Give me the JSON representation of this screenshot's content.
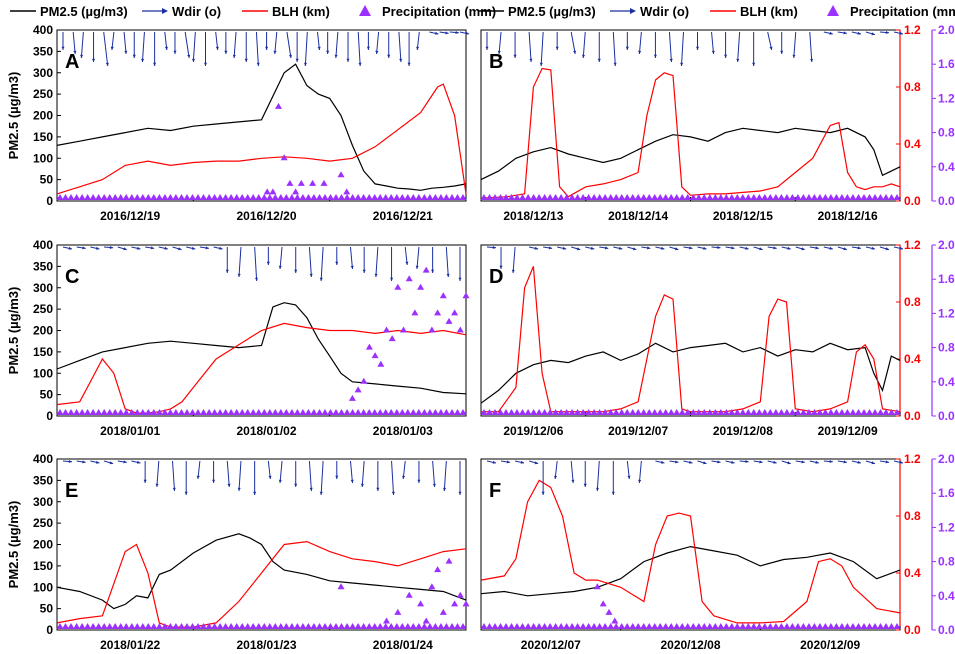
{
  "legend": [
    {
      "label": "PM2.5 (µg/m3)",
      "color": "#000000",
      "kind": "line"
    },
    {
      "label": "Wdir (o)",
      "color": "#1a2fa0",
      "kind": "arrow"
    },
    {
      "label": "BLH (km)",
      "color": "#ff0000",
      "kind": "line"
    },
    {
      "label": "Precipitation (mm)",
      "color": "#9b30ff",
      "kind": "triangle"
    }
  ],
  "colors": {
    "pm25": "#000000",
    "wind": "#1a2fa0",
    "blh": "#ff0000",
    "precip": "#9b30ff"
  },
  "y_label": "PM2.5 (µg/m3)",
  "chart_data": [
    {
      "type": "line",
      "panel": "A",
      "x_ticks": [
        "2016/12/19",
        "2016/12/20",
        "2016/12/21"
      ],
      "pm25_ticks": [
        "0",
        "50",
        "100",
        "150",
        "200",
        "250",
        "300",
        "350",
        "400"
      ],
      "pm25_ylim": [
        0,
        400
      ],
      "x_range": [
        0,
        72
      ],
      "series": [
        {
          "name": "PM2.5",
          "axis": "left",
          "x": [
            0,
            4,
            8,
            12,
            16,
            20,
            24,
            28,
            32,
            36,
            40,
            42,
            44,
            46,
            48,
            50,
            52,
            54,
            56,
            58,
            60,
            62,
            64,
            66,
            68,
            70,
            72
          ],
          "values": [
            130,
            140,
            150,
            160,
            170,
            165,
            175,
            180,
            185,
            190,
            300,
            320,
            270,
            250,
            240,
            200,
            130,
            70,
            40,
            35,
            30,
            28,
            25,
            30,
            32,
            35,
            40
          ]
        },
        {
          "name": "BLH",
          "axis": "right",
          "x": [
            0,
            4,
            8,
            12,
            16,
            20,
            24,
            28,
            32,
            36,
            40,
            44,
            48,
            52,
            56,
            60,
            64,
            67,
            68,
            70,
            72
          ],
          "values": [
            0.05,
            0.1,
            0.15,
            0.25,
            0.28,
            0.25,
            0.27,
            0.28,
            0.28,
            0.3,
            0.31,
            0.3,
            0.28,
            0.3,
            0.38,
            0.5,
            0.62,
            0.8,
            0.82,
            0.6,
            0.05
          ]
        }
      ],
      "wind_dir": [
        190,
        195,
        185,
        190,
        200,
        185,
        195,
        190,
        185,
        190,
        195,
        190,
        200,
        185,
        190,
        195,
        190,
        185,
        190,
        195,
        190,
        185,
        200,
        190,
        185,
        195,
        190,
        185,
        190,
        195,
        190,
        185,
        190,
        195,
        190,
        185,
        90,
        85,
        80,
        90
      ],
      "precip": {
        "x": [
          37,
          38,
          39,
          40,
          41,
          42,
          43,
          45,
          47,
          50,
          51
        ],
        "values": [
          0.1,
          0.1,
          1.1,
          0.5,
          0.2,
          0.1,
          0.2,
          0.2,
          0.2,
          0.3,
          0.1
        ]
      }
    },
    {
      "type": "line",
      "panel": "B",
      "x_ticks": [
        "2018/12/13",
        "2018/12/14",
        "2018/12/15",
        "2018/12/16"
      ],
      "blh_ticks": [
        "0.0",
        "0.4",
        "0.8",
        "1.2"
      ],
      "blh_ylim": [
        0,
        1.2
      ],
      "precip_ticks": [
        "0.0",
        "0.4",
        "0.8",
        "1.2",
        "1.6",
        "2.0"
      ],
      "precip_ylim": [
        0,
        2.0
      ],
      "x_range": [
        0,
        96
      ],
      "series": [
        {
          "name": "PM2.5",
          "axis": "left",
          "x": [
            0,
            4,
            8,
            12,
            16,
            20,
            24,
            28,
            32,
            36,
            40,
            44,
            48,
            52,
            56,
            60,
            64,
            68,
            72,
            76,
            80,
            84,
            88,
            90,
            92,
            94,
            96
          ],
          "values": [
            50,
            70,
            100,
            115,
            125,
            110,
            100,
            90,
            100,
            120,
            140,
            155,
            150,
            140,
            160,
            170,
            165,
            160,
            170,
            165,
            160,
            170,
            150,
            120,
            60,
            70,
            80
          ]
        },
        {
          "name": "BLH",
          "axis": "right",
          "x": [
            0,
            6,
            10,
            12,
            14,
            16,
            18,
            20,
            24,
            28,
            32,
            36,
            38,
            40,
            42,
            44,
            46,
            48,
            52,
            56,
            60,
            64,
            68,
            72,
            76,
            80,
            82,
            84,
            86,
            88,
            90,
            92,
            94,
            96
          ],
          "values": [
            0.02,
            0.03,
            0.05,
            0.8,
            0.93,
            0.92,
            0.1,
            0.03,
            0.1,
            0.12,
            0.15,
            0.2,
            0.6,
            0.85,
            0.9,
            0.88,
            0.1,
            0.04,
            0.05,
            0.05,
            0.06,
            0.07,
            0.1,
            0.2,
            0.3,
            0.53,
            0.55,
            0.2,
            0.1,
            0.08,
            0.1,
            0.1,
            0.12,
            0.1
          ]
        }
      ],
      "wind_dir": [
        190,
        185,
        190,
        195,
        185,
        190,
        200,
        185,
        190,
        195,
        190,
        185,
        190,
        195,
        185,
        190,
        195,
        190,
        185,
        190,
        200,
        190,
        185,
        195,
        90,
        85,
        90,
        95,
        80,
        90
      ],
      "precip": {
        "x": [],
        "values": []
      }
    },
    {
      "type": "line",
      "panel": "C",
      "x_ticks": [
        "2018/01/01",
        "2018/01/02",
        "2018/01/03"
      ],
      "pm25_ticks": [
        "0",
        "50",
        "100",
        "150",
        "200",
        "250",
        "300",
        "350",
        "400"
      ],
      "pm25_ylim": [
        0,
        400
      ],
      "x_range": [
        0,
        72
      ],
      "series": [
        {
          "name": "PM2.5",
          "axis": "left",
          "x": [
            0,
            4,
            8,
            12,
            16,
            20,
            24,
            28,
            32,
            36,
            38,
            40,
            42,
            44,
            46,
            48,
            50,
            52,
            56,
            60,
            64,
            68,
            72
          ],
          "values": [
            110,
            130,
            150,
            160,
            170,
            175,
            170,
            165,
            160,
            165,
            255,
            265,
            260,
            230,
            180,
            140,
            100,
            80,
            75,
            70,
            65,
            55,
            52
          ]
        },
        {
          "name": "BLH",
          "axis": "right",
          "x": [
            0,
            4,
            6,
            8,
            10,
            12,
            14,
            16,
            18,
            20,
            22,
            24,
            28,
            32,
            36,
            40,
            44,
            48,
            52,
            56,
            60,
            64,
            68,
            72
          ],
          "values": [
            0.08,
            0.1,
            0.25,
            0.4,
            0.3,
            0.05,
            0.02,
            0.02,
            0.03,
            0.05,
            0.1,
            0.2,
            0.4,
            0.5,
            0.6,
            0.65,
            0.62,
            0.6,
            0.6,
            0.58,
            0.6,
            0.58,
            0.6,
            0.57
          ]
        }
      ],
      "wind_dir": [
        90,
        85,
        90,
        80,
        95,
        90,
        85,
        90,
        95,
        90,
        85,
        90,
        190,
        185,
        195,
        190,
        185,
        190,
        195,
        185,
        190,
        195,
        190,
        185,
        190,
        195,
        185,
        190,
        195,
        190
      ],
      "precip": {
        "x": [
          52,
          53,
          54,
          55,
          56,
          57,
          58,
          59,
          60,
          61,
          62,
          63,
          64,
          65,
          66,
          67,
          68,
          69,
          70,
          71,
          72
        ],
        "values": [
          0.2,
          0.3,
          0.4,
          0.8,
          0.7,
          0.6,
          1.0,
          0.9,
          1.5,
          1.0,
          1.6,
          1.2,
          1.5,
          1.7,
          1.0,
          1.2,
          1.4,
          1.1,
          1.2,
          1.0,
          1.4
        ]
      }
    },
    {
      "type": "line",
      "panel": "D",
      "x_ticks": [
        "2019/12/06",
        "2019/12/07",
        "2019/12/08",
        "2019/12/09"
      ],
      "blh_ticks": [
        "0.0",
        "0.4",
        "0.8",
        "1.2"
      ],
      "blh_ylim": [
        0,
        1.2
      ],
      "precip_ticks": [
        "0.0",
        "0.4",
        "0.8",
        "1.2",
        "1.6",
        "2.0"
      ],
      "precip_ylim": [
        0,
        2.0
      ],
      "x_range": [
        0,
        96
      ],
      "series": [
        {
          "name": "PM2.5",
          "axis": "left",
          "x": [
            0,
            4,
            8,
            12,
            16,
            20,
            24,
            28,
            32,
            36,
            40,
            44,
            48,
            52,
            56,
            60,
            64,
            68,
            72,
            76,
            80,
            84,
            88,
            90,
            92,
            94,
            96
          ],
          "values": [
            30,
            60,
            100,
            120,
            130,
            125,
            140,
            150,
            130,
            145,
            170,
            150,
            160,
            165,
            170,
            150,
            160,
            140,
            155,
            150,
            170,
            155,
            160,
            100,
            60,
            140,
            130
          ]
        },
        {
          "name": "BLH",
          "axis": "right",
          "x": [
            0,
            4,
            8,
            10,
            12,
            14,
            16,
            18,
            20,
            24,
            28,
            32,
            36,
            40,
            42,
            44,
            46,
            48,
            52,
            56,
            60,
            64,
            66,
            68,
            70,
            72,
            76,
            80,
            84,
            86,
            88,
            90,
            92,
            96
          ],
          "values": [
            0.03,
            0.03,
            0.2,
            0.9,
            1.05,
            0.3,
            0.03,
            0.03,
            0.03,
            0.03,
            0.03,
            0.05,
            0.1,
            0.7,
            0.85,
            0.82,
            0.05,
            0.03,
            0.03,
            0.03,
            0.05,
            0.1,
            0.7,
            0.82,
            0.8,
            0.05,
            0.03,
            0.05,
            0.1,
            0.45,
            0.5,
            0.4,
            0.05,
            0.03
          ]
        }
      ],
      "wind_dir": [
        80,
        190,
        185,
        90,
        85,
        90,
        95,
        90,
        85,
        90,
        95,
        85,
        90,
        95,
        85,
        90,
        80,
        85,
        90,
        95,
        85,
        90,
        95,
        85,
        90,
        95,
        85,
        90,
        95,
        90
      ],
      "precip": {
        "x": [],
        "values": []
      }
    },
    {
      "type": "line",
      "panel": "E",
      "x_ticks": [
        "2018/01/22",
        "2018/01/23",
        "2018/01/24"
      ],
      "pm25_ticks": [
        "0",
        "50",
        "100",
        "150",
        "200",
        "250",
        "300",
        "350",
        "400"
      ],
      "pm25_ylim": [
        0,
        400
      ],
      "x_range": [
        0,
        72
      ],
      "series": [
        {
          "name": "PM2.5",
          "axis": "left",
          "x": [
            0,
            4,
            8,
            10,
            12,
            14,
            16,
            18,
            20,
            24,
            28,
            32,
            34,
            36,
            38,
            40,
            44,
            48,
            52,
            56,
            60,
            64,
            68,
            72
          ],
          "values": [
            100,
            90,
            70,
            50,
            60,
            80,
            75,
            130,
            140,
            180,
            210,
            225,
            215,
            200,
            160,
            140,
            130,
            115,
            110,
            105,
            100,
            95,
            90,
            70
          ]
        },
        {
          "name": "BLH",
          "axis": "right",
          "x": [
            0,
            4,
            8,
            12,
            14,
            16,
            18,
            20,
            24,
            28,
            32,
            36,
            40,
            44,
            48,
            52,
            56,
            60,
            64,
            68,
            72
          ],
          "values": [
            0.05,
            0.08,
            0.1,
            0.55,
            0.6,
            0.4,
            0.05,
            0.02,
            0.02,
            0.05,
            0.2,
            0.4,
            0.6,
            0.62,
            0.55,
            0.5,
            0.48,
            0.45,
            0.5,
            0.55,
            0.57
          ]
        }
      ],
      "wind_dir": [
        80,
        85,
        90,
        95,
        85,
        90,
        190,
        185,
        195,
        190,
        185,
        190,
        195,
        185,
        190,
        195,
        185,
        190,
        195,
        185,
        190,
        195,
        185,
        190,
        195,
        185,
        190,
        195,
        185,
        190
      ],
      "precip": {
        "x": [
          50,
          58,
          60,
          62,
          64,
          65,
          66,
          67,
          68,
          69,
          70,
          71,
          72
        ],
        "values": [
          0.5,
          0.1,
          0.2,
          0.4,
          0.3,
          0.1,
          0.5,
          0.7,
          0.2,
          0.8,
          0.3,
          0.4,
          0.3
        ]
      }
    },
    {
      "type": "line",
      "panel": "F",
      "x_ticks": [
        "2020/12/07",
        "2020/12/08",
        "2020/12/09"
      ],
      "blh_ticks": [
        "0.0",
        "0.4",
        "0.8",
        "1.2"
      ],
      "blh_ylim": [
        0,
        1.2
      ],
      "precip_ticks": [
        "0.0",
        "0.4",
        "0.8",
        "1.2",
        "1.6",
        "2.0"
      ],
      "precip_ylim": [
        0,
        2.0
      ],
      "x_range": [
        0,
        72
      ],
      "series": [
        {
          "name": "PM2.5",
          "axis": "left",
          "x": [
            0,
            4,
            8,
            12,
            16,
            20,
            24,
            28,
            32,
            36,
            40,
            44,
            48,
            52,
            56,
            60,
            64,
            68,
            72
          ],
          "values": [
            85,
            90,
            80,
            85,
            90,
            100,
            120,
            160,
            180,
            195,
            185,
            175,
            150,
            165,
            170,
            180,
            160,
            120,
            140
          ]
        },
        {
          "name": "BLH",
          "axis": "right",
          "x": [
            0,
            4,
            6,
            8,
            10,
            12,
            14,
            16,
            18,
            20,
            24,
            28,
            30,
            32,
            34,
            36,
            38,
            40,
            44,
            48,
            52,
            56,
            58,
            60,
            62,
            64,
            68,
            72
          ],
          "values": [
            0.35,
            0.38,
            0.5,
            0.9,
            1.05,
            1.0,
            0.8,
            0.4,
            0.35,
            0.35,
            0.3,
            0.2,
            0.6,
            0.8,
            0.82,
            0.8,
            0.2,
            0.1,
            0.05,
            0.05,
            0.06,
            0.2,
            0.48,
            0.5,
            0.45,
            0.3,
            0.15,
            0.12
          ]
        }
      ],
      "wind_dir": [
        90,
        85,
        90,
        95,
        190,
        185,
        195,
        190,
        185,
        190,
        195,
        185,
        90,
        85,
        90,
        95,
        85,
        90,
        80,
        85,
        90,
        95,
        85,
        90,
        80,
        85,
        90,
        95,
        85,
        90
      ],
      "precip": {
        "x": [
          20,
          21,
          22,
          23
        ],
        "values": [
          0.5,
          0.3,
          0.2,
          0.1
        ]
      }
    }
  ]
}
